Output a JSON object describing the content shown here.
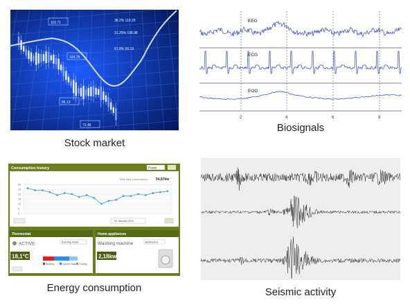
{
  "captions": {
    "stock": "Stock market",
    "bio": "Biosignals",
    "energy": "Energy consumption",
    "seismic": "Seismic activity"
  },
  "stock": {
    "labels": [
      "38.2% 119.29",
      "31.25% 108.98",
      "61.8% 99.19",
      "116.71",
      "104.78",
      "86.13",
      "72.46"
    ],
    "colors": {
      "bg": "#0a2a8a",
      "grid": "#5b86ff",
      "curve": "#cfe0ff"
    }
  },
  "bio": {
    "channels": [
      "EEG",
      "ECG",
      "EOG"
    ],
    "ticks": [
      "2",
      "4",
      "6",
      "8"
    ],
    "colors": {
      "trace": "#2a40d8",
      "marker": "#666666"
    }
  },
  "energy": {
    "header": "Consumption history",
    "dropdown": "Power",
    "total_label": "Total daily consumption",
    "total_value": "54,87kw",
    "date_label": "31 January 2011",
    "yticks": [
      "30",
      "25",
      "20",
      "15",
      "10",
      "5",
      "0"
    ],
    "chart_values": [
      26,
      24,
      24,
      22,
      19,
      21,
      20,
      17,
      19,
      16,
      10,
      13,
      14,
      18,
      18,
      20,
      19,
      21,
      22,
      23
    ],
    "thermostat": {
      "title": "Thermostat",
      "status": "ACTIVE",
      "mode": "Evening mode",
      "temp": "18,1°C",
      "legend": [
        "Heating",
        "Current Status",
        "Cooling"
      ]
    },
    "appliances": {
      "title": "Home appliances",
      "device": "Washing machine",
      "dropdown": "Bathrooms",
      "power": "2,18kw"
    },
    "colors": {
      "header": "#6b7f1f",
      "header_dark": "#556a14",
      "line": "#3a9fd0",
      "accent": "#4a5d10"
    }
  },
  "seismic": {
    "colors": {
      "bg": "#eeeeee",
      "trace": "#222222"
    }
  }
}
